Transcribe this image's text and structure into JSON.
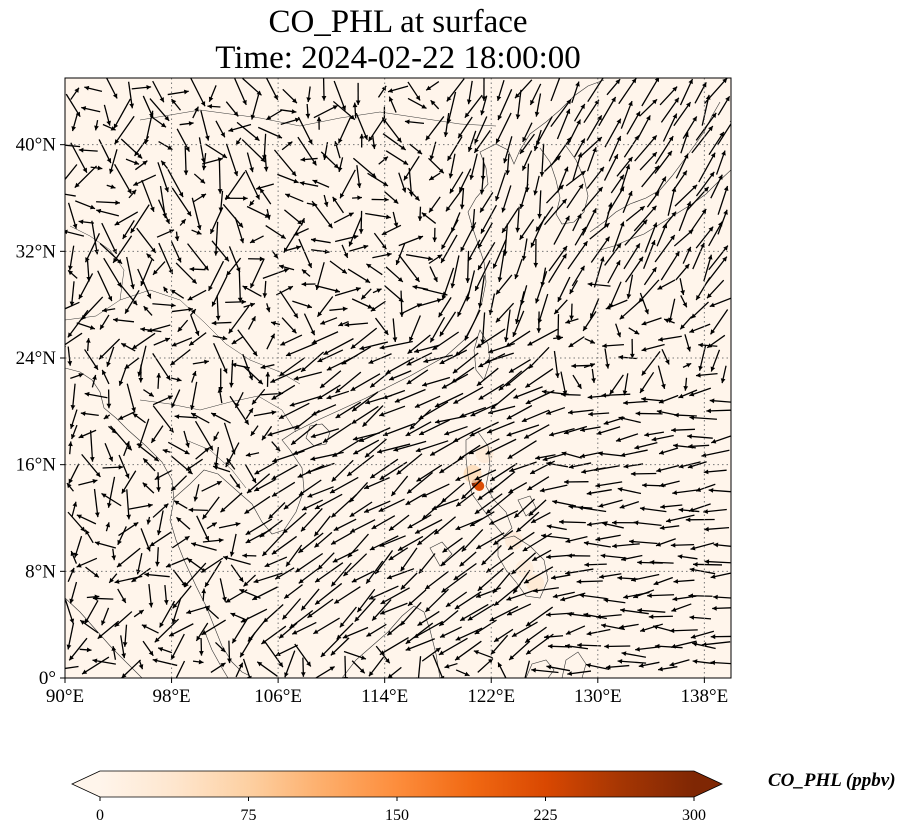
{
  "title": {
    "line1": "CO_PHL at surface",
    "line2": "Time: 2024-02-22 18:00:00"
  },
  "map": {
    "extent": {
      "lon": [
        90,
        140
      ],
      "lat": [
        0,
        45
      ]
    },
    "x_ticks": [
      {
        "value": 90,
        "label": "90°E"
      },
      {
        "value": 98,
        "label": "98°E"
      },
      {
        "value": 106,
        "label": "106°E"
      },
      {
        "value": 114,
        "label": "114°E"
      },
      {
        "value": 122,
        "label": "122°E"
      },
      {
        "value": 130,
        "label": "130°E"
      },
      {
        "value": 138,
        "label": "138°E"
      }
    ],
    "y_ticks": [
      {
        "value": 0,
        "label": "0°"
      },
      {
        "value": 8,
        "label": "8°N"
      },
      {
        "value": 16,
        "label": "16°N"
      },
      {
        "value": 24,
        "label": "24°N"
      },
      {
        "value": 32,
        "label": "32°N"
      },
      {
        "value": 40,
        "label": "40°N"
      }
    ],
    "gridlines": true,
    "background_color": "#fff5eb",
    "hotspots": [
      {
        "lon": 120.9,
        "lat": 14.6,
        "value": 300
      },
      {
        "lon": 121.1,
        "lat": 14.4,
        "value": 220
      },
      {
        "lon": 120.6,
        "lat": 15.3,
        "value": 60
      },
      {
        "lon": 121.5,
        "lat": 16.8,
        "value": 30
      },
      {
        "lon": 123.7,
        "lat": 10.3,
        "value": 30
      },
      {
        "lon": 125.3,
        "lat": 7.1,
        "value": 35
      },
      {
        "lon": 124.5,
        "lat": 8.2,
        "value": 25
      }
    ],
    "wind_regions": [
      {
        "lon": [
          90,
          104
        ],
        "lat": [
          24,
          45
        ],
        "u": 0.0,
        "v": -0.55,
        "noise": 0.9
      },
      {
        "lon": [
          104,
          118
        ],
        "lat": [
          28,
          45
        ],
        "u": 0.15,
        "v": -0.3,
        "noise": 0.9
      },
      {
        "lon": [
          118,
          126
        ],
        "lat": [
          26,
          45
        ],
        "u": -0.35,
        "v": -1.0,
        "noise": 0.35
      },
      {
        "lon": [
          126,
          140
        ],
        "lat": [
          30,
          45
        ],
        "u": 0.6,
        "v": 0.9,
        "noise": 0.35
      },
      {
        "lon": [
          126,
          140
        ],
        "lat": [
          22,
          30
        ],
        "u": -0.3,
        "v": -0.5,
        "noise": 0.6
      },
      {
        "lon": [
          106,
          126
        ],
        "lat": [
          16,
          26
        ],
        "u": -1.1,
        "v": -0.55,
        "noise": 0.3
      },
      {
        "lon": [
          104,
          126
        ],
        "lat": [
          2,
          16
        ],
        "u": -0.9,
        "v": -0.65,
        "noise": 0.3
      },
      {
        "lon": [
          90,
          106
        ],
        "lat": [
          10,
          24
        ],
        "u": 0.0,
        "v": -0.4,
        "noise": 0.9
      },
      {
        "lon": [
          90,
          104
        ],
        "lat": [
          0,
          10
        ],
        "u": -0.3,
        "v": -0.3,
        "noise": 0.8
      },
      {
        "lon": [
          126,
          140
        ],
        "lat": [
          0,
          22
        ],
        "u": -0.9,
        "v": -0.05,
        "noise": 0.25
      }
    ]
  },
  "colorbar": {
    "title": "CO_PHL (ppbv)",
    "colormap": "OrRd",
    "min": 0,
    "max": 300,
    "extend": "both",
    "ticks": [
      {
        "value": 0,
        "label": "0"
      },
      {
        "value": 75,
        "label": "75"
      },
      {
        "value": 150,
        "label": "150"
      },
      {
        "value": 225,
        "label": "225"
      },
      {
        "value": 300,
        "label": "300"
      }
    ],
    "colors": [
      "#fff5eb",
      "#fee6ce",
      "#fdd0a2",
      "#fdae6b",
      "#fd8d3c",
      "#f16913",
      "#d94801",
      "#a63603",
      "#7f2704"
    ]
  }
}
